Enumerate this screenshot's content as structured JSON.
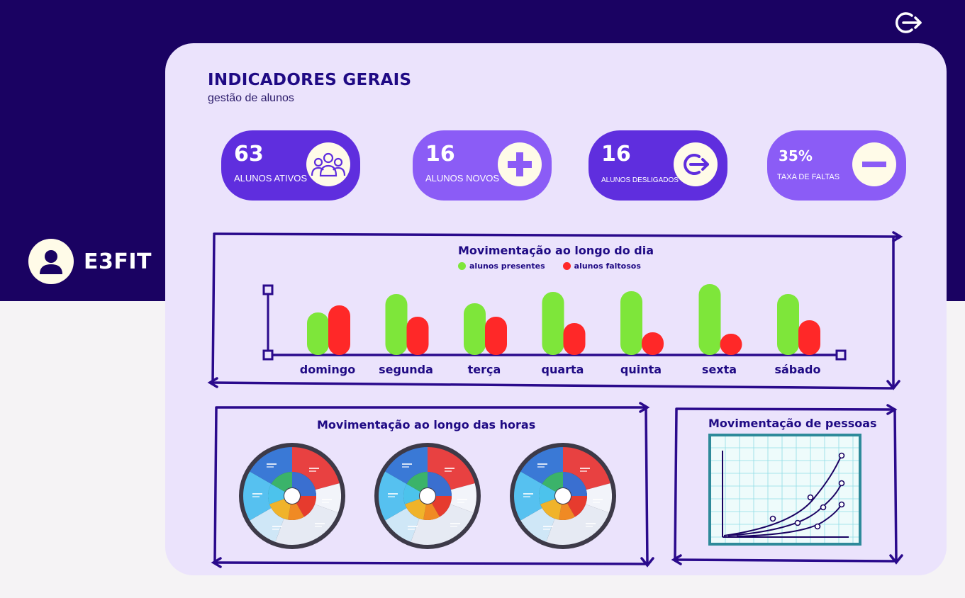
{
  "brand": {
    "name": "E3FIT",
    "icon": "user-icon"
  },
  "header": {
    "logout_icon": "logout-icon"
  },
  "page": {
    "title": "INDICADORES GERAIS",
    "subtitle": "gestão de alunos"
  },
  "kpis": [
    {
      "value": "63",
      "label": "ALUNOS ATIVOS",
      "icon": "group-icon",
      "color": "#5f2ede"
    },
    {
      "value": "16",
      "label": "ALUNOS NOVOS",
      "icon": "plus-icon",
      "color": "#8b5cf6"
    },
    {
      "value": "16",
      "label": "ALUNOS DESLIGADOS",
      "icon": "logout-icon",
      "color": "#5f2ede"
    },
    {
      "value": "35%",
      "label": "TAXA DE FALTAS",
      "icon": "minus-icon",
      "color": "#8b5cf6"
    }
  ],
  "chart_data": {
    "type": "bar",
    "title": "Movimentação ao longo do dia",
    "categories": [
      "domingo",
      "segunda",
      "terça",
      "quarta",
      "quinta",
      "sexta",
      "sábado"
    ],
    "series": [
      {
        "name": "alunos presentes",
        "color": "#7ee63a",
        "values": [
          60,
          86,
          73,
          89,
          90,
          100,
          86
        ]
      },
      {
        "name": "alunos faltosos",
        "color": "#ff2828",
        "values": [
          70,
          54,
          54,
          45,
          32,
          30,
          49
        ]
      }
    ],
    "ylim": [
      0,
      100
    ]
  },
  "hours_panel": {
    "title": "Movimentação ao longo das horas",
    "charts": 3
  },
  "people_panel": {
    "title": "Movimentação de pessoas"
  },
  "colors": {
    "navy": "#1a0262",
    "panel": "#ebe3fc",
    "accent": "#1f0a84"
  }
}
